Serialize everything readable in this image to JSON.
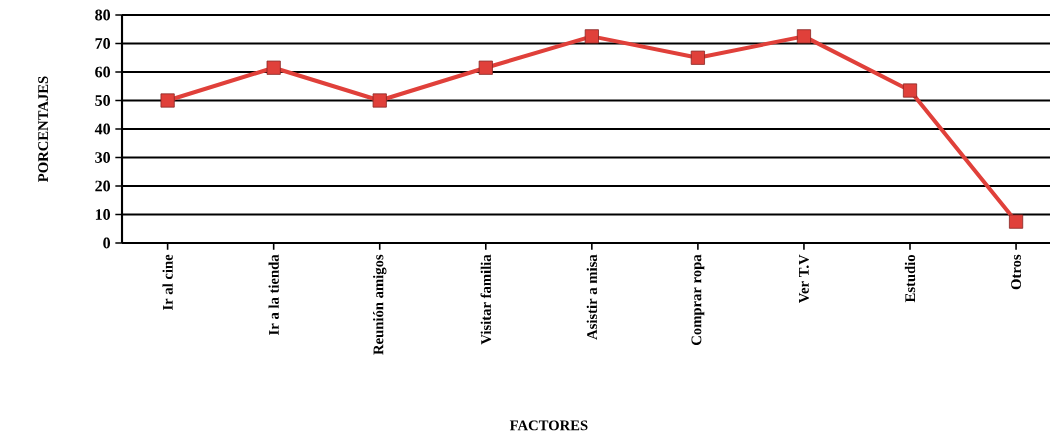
{
  "chart_data": {
    "type": "line",
    "xlabel": "FACTORES",
    "ylabel": "PORCENTAJES",
    "categories": [
      "Ir al cine",
      "Ir a la tienda",
      "Reunión amigos",
      "Visitar familia",
      "Asistir a misa",
      "Comprar ropa",
      "Ver T.V",
      "Estudio",
      "Otros"
    ],
    "values": [
      50,
      61.5,
      50,
      61.5,
      72.5,
      65,
      72.5,
      53.5,
      7.5
    ],
    "color": "#e0403a",
    "marker": "square",
    "line_style": "solid",
    "ylim": [
      0,
      80
    ],
    "yticks": [
      0,
      10,
      20,
      30,
      40,
      50,
      60,
      70,
      80
    ],
    "grid": "y"
  }
}
